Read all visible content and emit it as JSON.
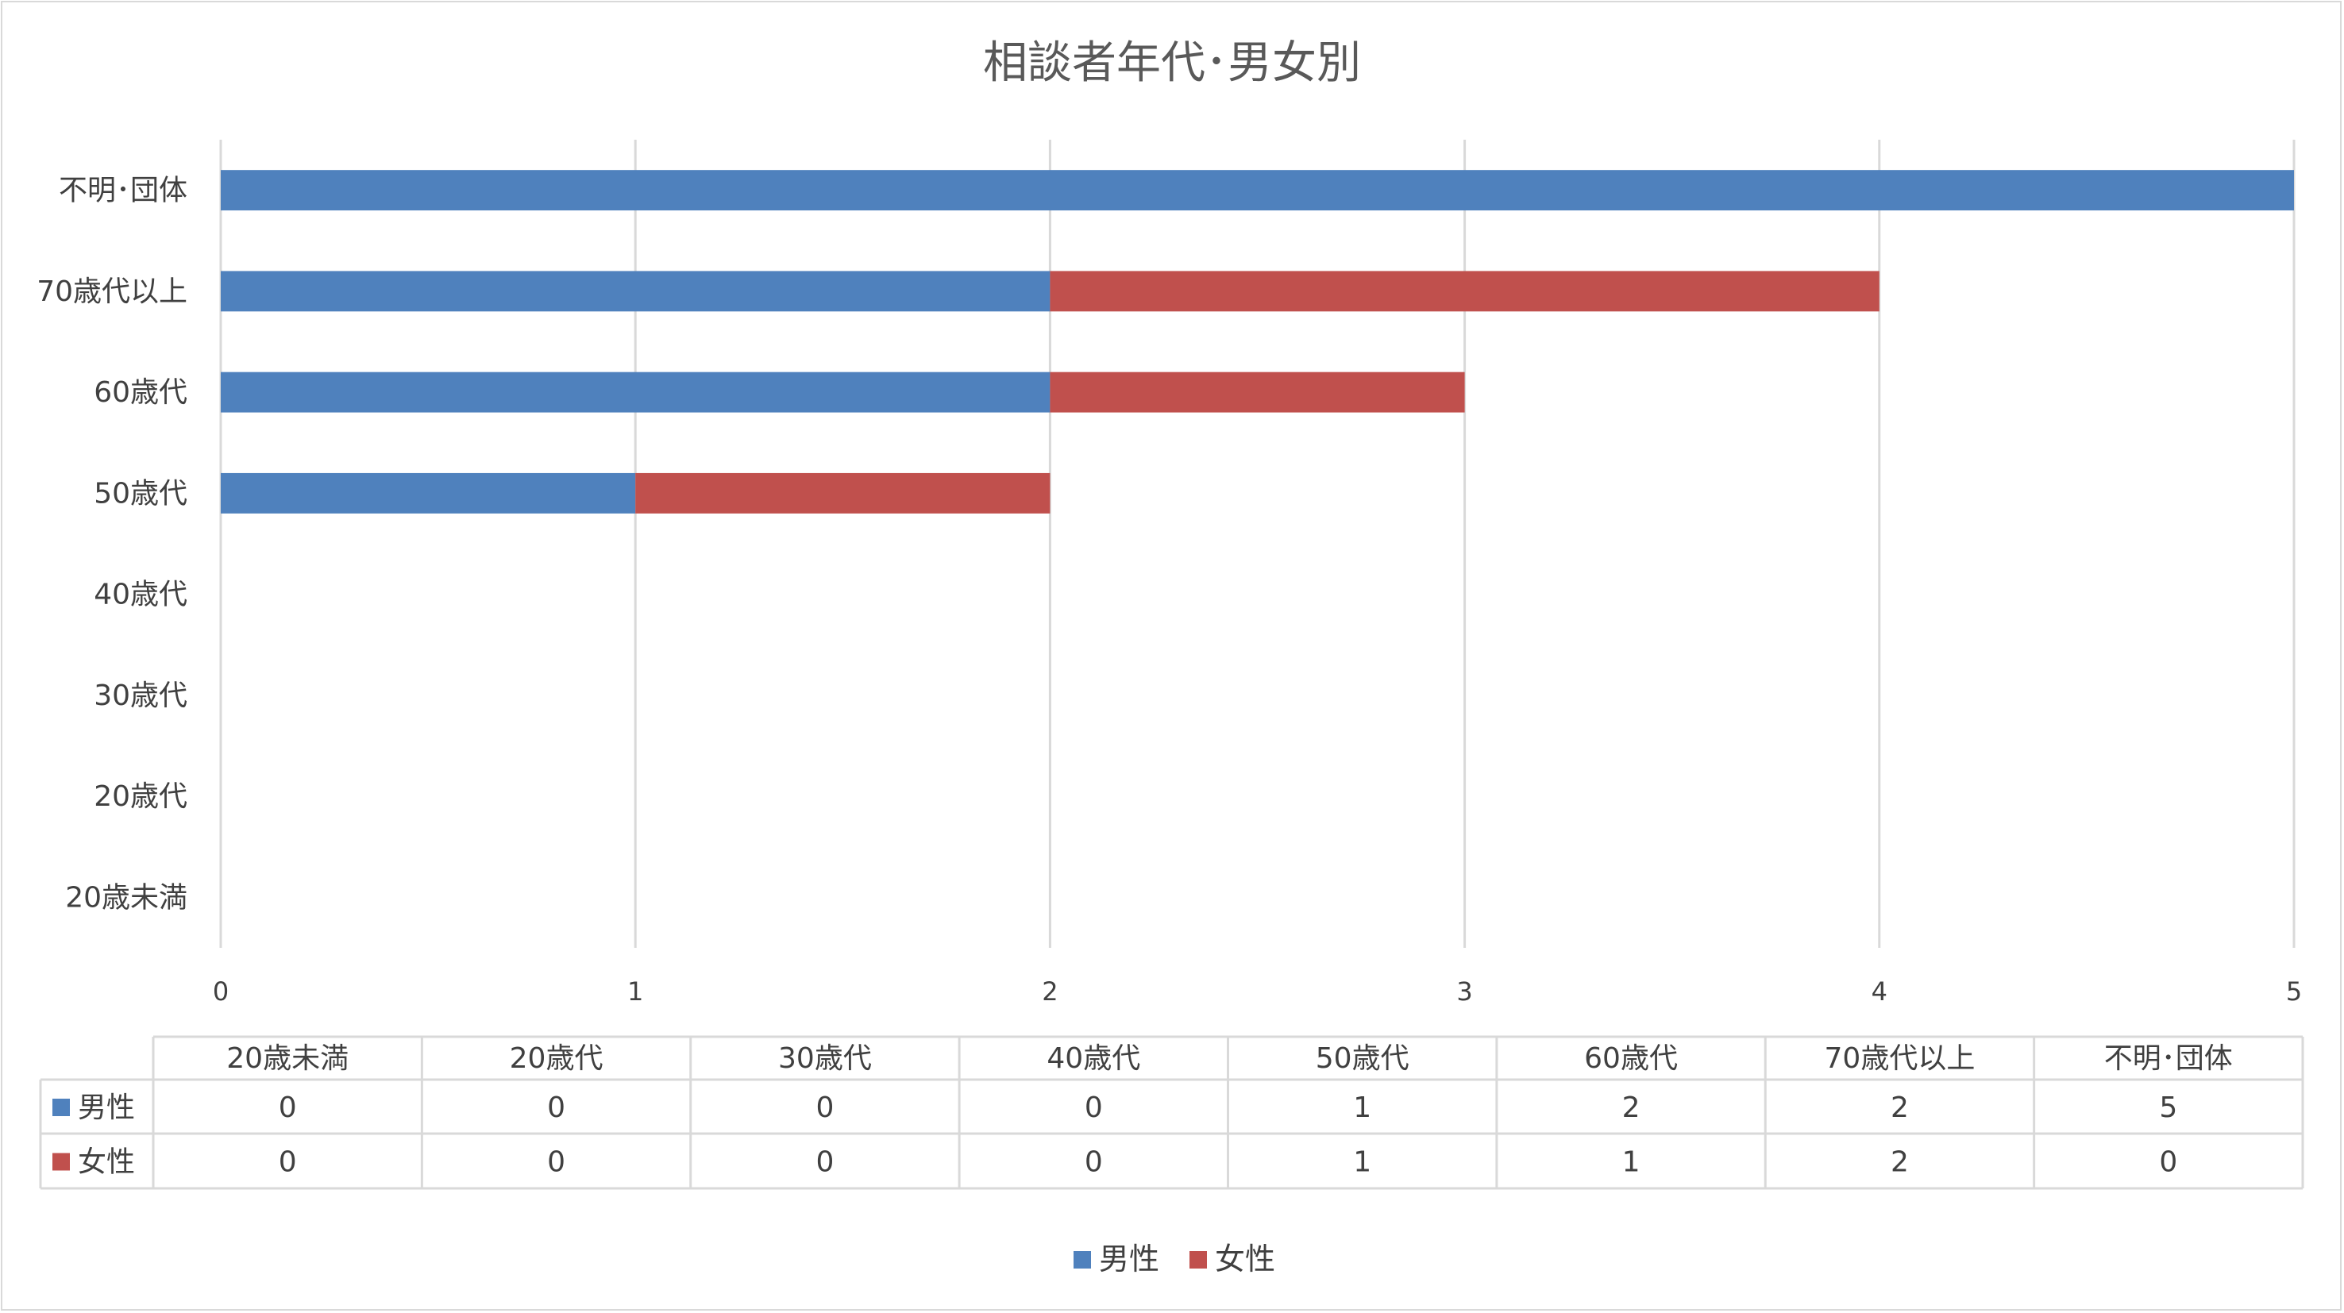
{
  "chart_data": {
    "type": "bar",
    "orientation": "horizontal",
    "stacked": true,
    "title": "相談者年代･男女別",
    "categories": [
      "20歳未満",
      "20歳代",
      "30歳代",
      "40歳代",
      "50歳代",
      "60歳代",
      "70歳代以上",
      "不明･団体"
    ],
    "series": [
      {
        "name": "男性",
        "color": "#4f81bd",
        "values": [
          0,
          0,
          0,
          0,
          1,
          2,
          2,
          5
        ]
      },
      {
        "name": "女性",
        "color": "#c0504d",
        "values": [
          0,
          0,
          0,
          0,
          1,
          1,
          2,
          0
        ]
      }
    ],
    "xlim": [
      0,
      5
    ],
    "xticks": [
      "0",
      "1",
      "2",
      "3",
      "4",
      "5"
    ],
    "grid": true,
    "legend": "bottom",
    "data_table": true
  }
}
